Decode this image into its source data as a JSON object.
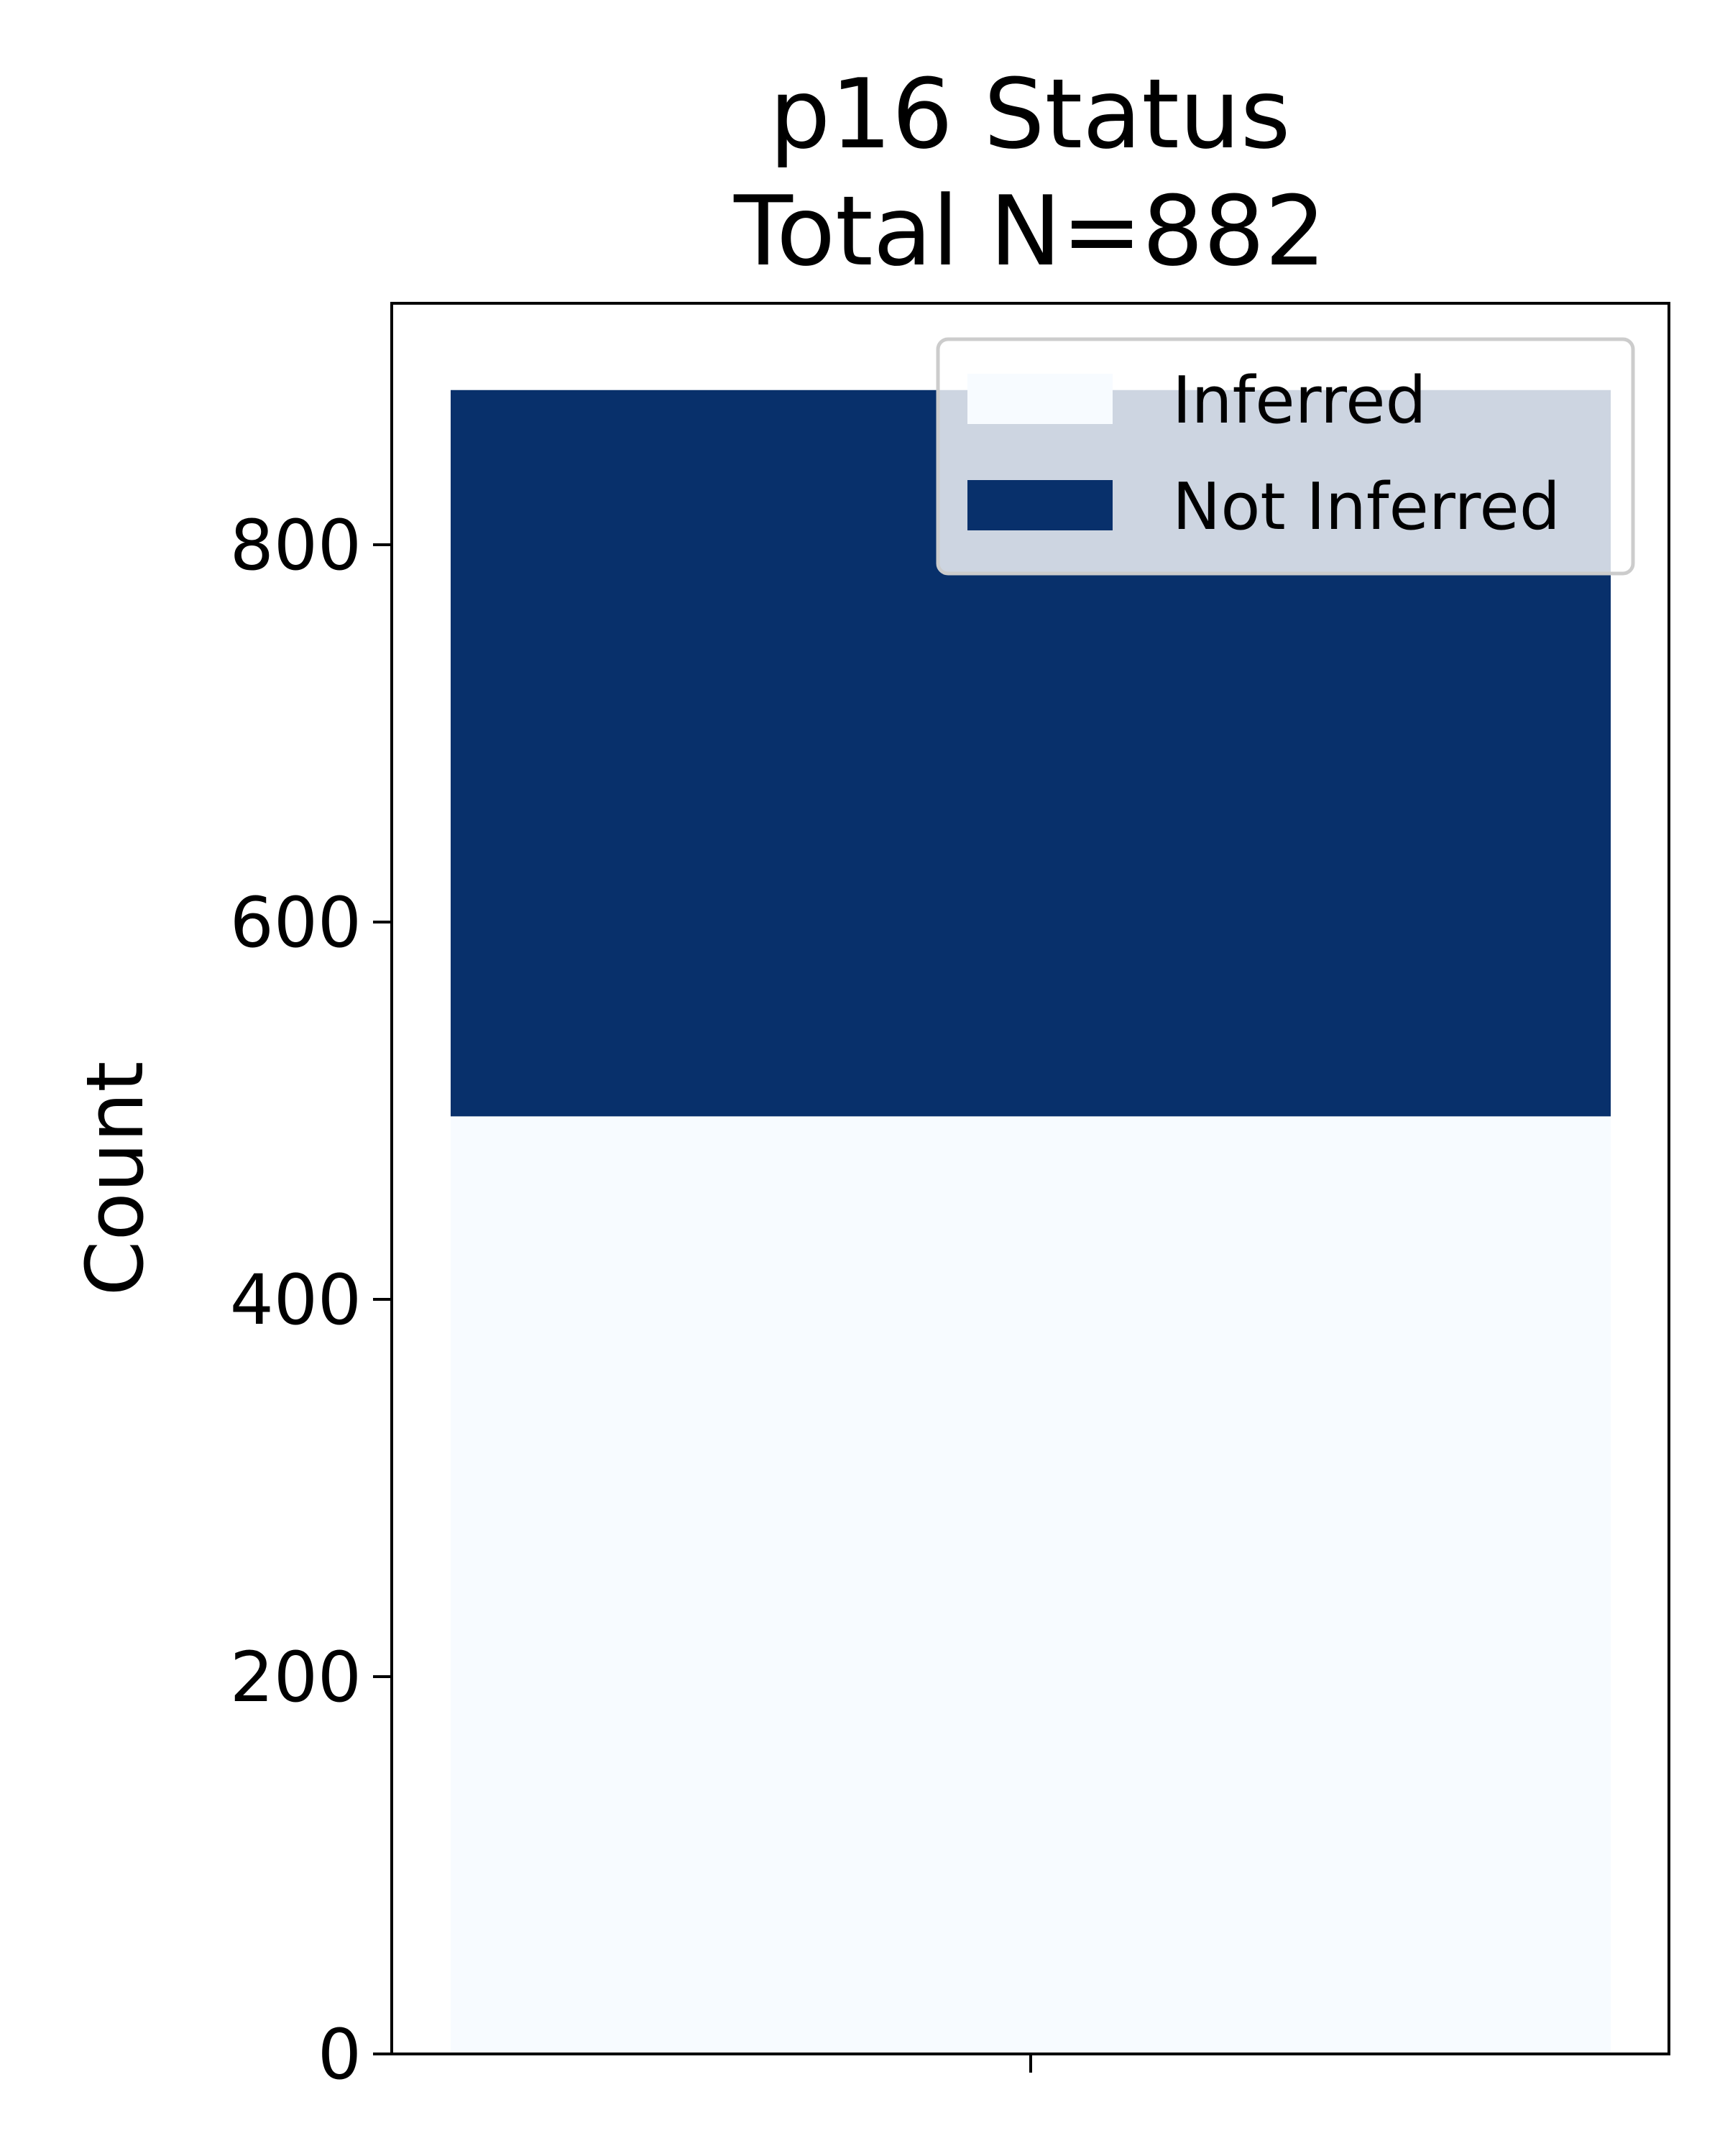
{
  "chart_data": {
    "type": "bar",
    "stacked": true,
    "title": "p16 Status",
    "subtitle": "Total N=882",
    "xlabel": "",
    "ylabel": "Count",
    "categories": [
      ""
    ],
    "ylim": [
      0,
      928
    ],
    "yticks": [
      "0",
      "200",
      "400",
      "600",
      "800"
    ],
    "ytick_values": [
      0,
      200,
      400,
      600,
      800
    ],
    "grid": false,
    "legend_position": "top-right",
    "series": [
      {
        "name": "Inferred",
        "values": [
          497
        ],
        "color": "#f7fbff"
      },
      {
        "name": "Not Inferred",
        "values": [
          385
        ],
        "color": "#08306b"
      }
    ],
    "colors": {
      "axis": "#000000",
      "legend_frame": "#cccccc",
      "legend_background": "#ffffff"
    }
  }
}
